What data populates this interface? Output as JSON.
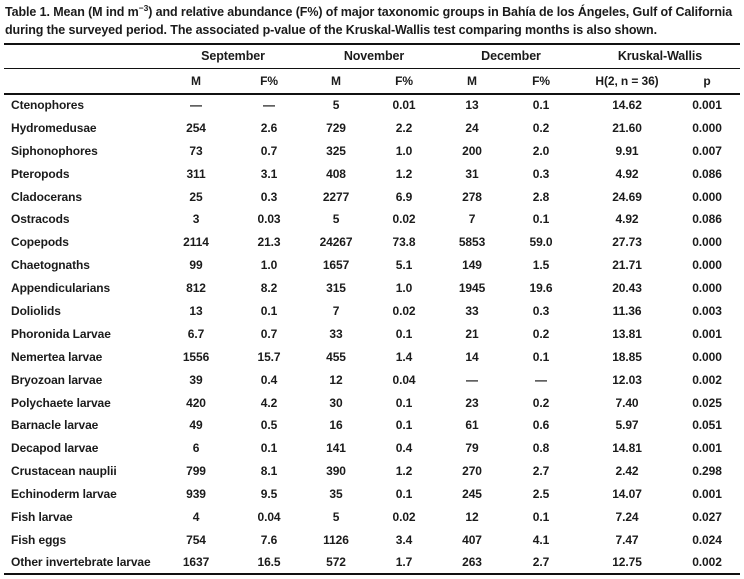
{
  "page": {
    "background": "#ffffff",
    "text_color": "#1b1b1b",
    "rule_color": "#111111"
  },
  "title": {
    "pre": "Table 1. Mean (M ind m",
    "sup": "−3",
    "post": ") and relative abundance (F%) of major taxonomic groups in Bahía de los Ángeles, Gulf of California during the surveyed period. The associated p-value of the Kruskal-Wallis test comparing months is also shown."
  },
  "chart_data": {
    "type": "table",
    "group_headers": [
      "September",
      "November",
      "December",
      "Kruskal-Wallis"
    ],
    "sub_headers": [
      "M",
      "F%",
      "M",
      "F%",
      "M",
      "F%",
      "H(2, n = 36)",
      "p"
    ],
    "rows": [
      [
        "Ctenophores",
        "—",
        "—",
        "5",
        "0.01",
        "13",
        "0.1",
        "14.62",
        "0.001"
      ],
      [
        "Hydromedusae",
        "254",
        "2.6",
        "729",
        "2.2",
        "24",
        "0.2",
        "21.60",
        "0.000"
      ],
      [
        "Siphonophores",
        "73",
        "0.7",
        "325",
        "1.0",
        "200",
        "2.0",
        "9.91",
        "0.007"
      ],
      [
        "Pteropods",
        "311",
        "3.1",
        "408",
        "1.2",
        "31",
        "0.3",
        "4.92",
        "0.086"
      ],
      [
        "Cladocerans",
        "25",
        "0.3",
        "2277",
        "6.9",
        "278",
        "2.8",
        "24.69",
        "0.000"
      ],
      [
        "Ostracods",
        "3",
        "0.03",
        "5",
        "0.02",
        "7",
        "0.1",
        "4.92",
        "0.086"
      ],
      [
        "Copepods",
        "2114",
        "21.3",
        "24267",
        "73.8",
        "5853",
        "59.0",
        "27.73",
        "0.000"
      ],
      [
        "Chaetognaths",
        "99",
        "1.0",
        "1657",
        "5.1",
        "149",
        "1.5",
        "21.71",
        "0.000"
      ],
      [
        "Appendicularians",
        "812",
        "8.2",
        "315",
        "1.0",
        "1945",
        "19.6",
        "20.43",
        "0.000"
      ],
      [
        "Doliolids",
        "13",
        "0.1",
        "7",
        "0.02",
        "33",
        "0.3",
        "11.36",
        "0.003"
      ],
      [
        "Phoronida Larvae",
        "6.7",
        "0.7",
        "33",
        "0.1",
        "21",
        "0.2",
        "13.81",
        "0.001"
      ],
      [
        "Nemertea larvae",
        "1556",
        "15.7",
        "455",
        "1.4",
        "14",
        "0.1",
        "18.85",
        "0.000"
      ],
      [
        "Bryozoan larvae",
        "39",
        "0.4",
        "12",
        "0.04",
        "—",
        "—",
        "12.03",
        "0.002"
      ],
      [
        "Polychaete larvae",
        "420",
        "4.2",
        "30",
        "0.1",
        "23",
        "0.2",
        "7.40",
        "0.025"
      ],
      [
        "Barnacle larvae",
        "49",
        "0.5",
        "16",
        "0.1",
        "61",
        "0.6",
        "5.97",
        "0.051"
      ],
      [
        "Decapod larvae",
        "6",
        "0.1",
        "141",
        "0.4",
        "79",
        "0.8",
        "14.81",
        "0.001"
      ],
      [
        "Crustacean nauplii",
        "799",
        "8.1",
        "390",
        "1.2",
        "270",
        "2.7",
        "2.42",
        "0.298"
      ],
      [
        "Echinoderm larvae",
        "939",
        "9.5",
        "35",
        "0.1",
        "245",
        "2.5",
        "14.07",
        "0.001"
      ],
      [
        "Fish larvae",
        "4",
        "0.04",
        "5",
        "0.02",
        "12",
        "0.1",
        "7.24",
        "0.027"
      ],
      [
        "Fish eggs",
        "754",
        "7.6",
        "1126",
        "3.4",
        "407",
        "4.1",
        "7.47",
        "0.024"
      ],
      [
        "Other invertebrate larvae",
        "1637",
        "16.5",
        "572",
        "1.7",
        "263",
        "2.7",
        "12.75",
        "0.002"
      ]
    ]
  }
}
